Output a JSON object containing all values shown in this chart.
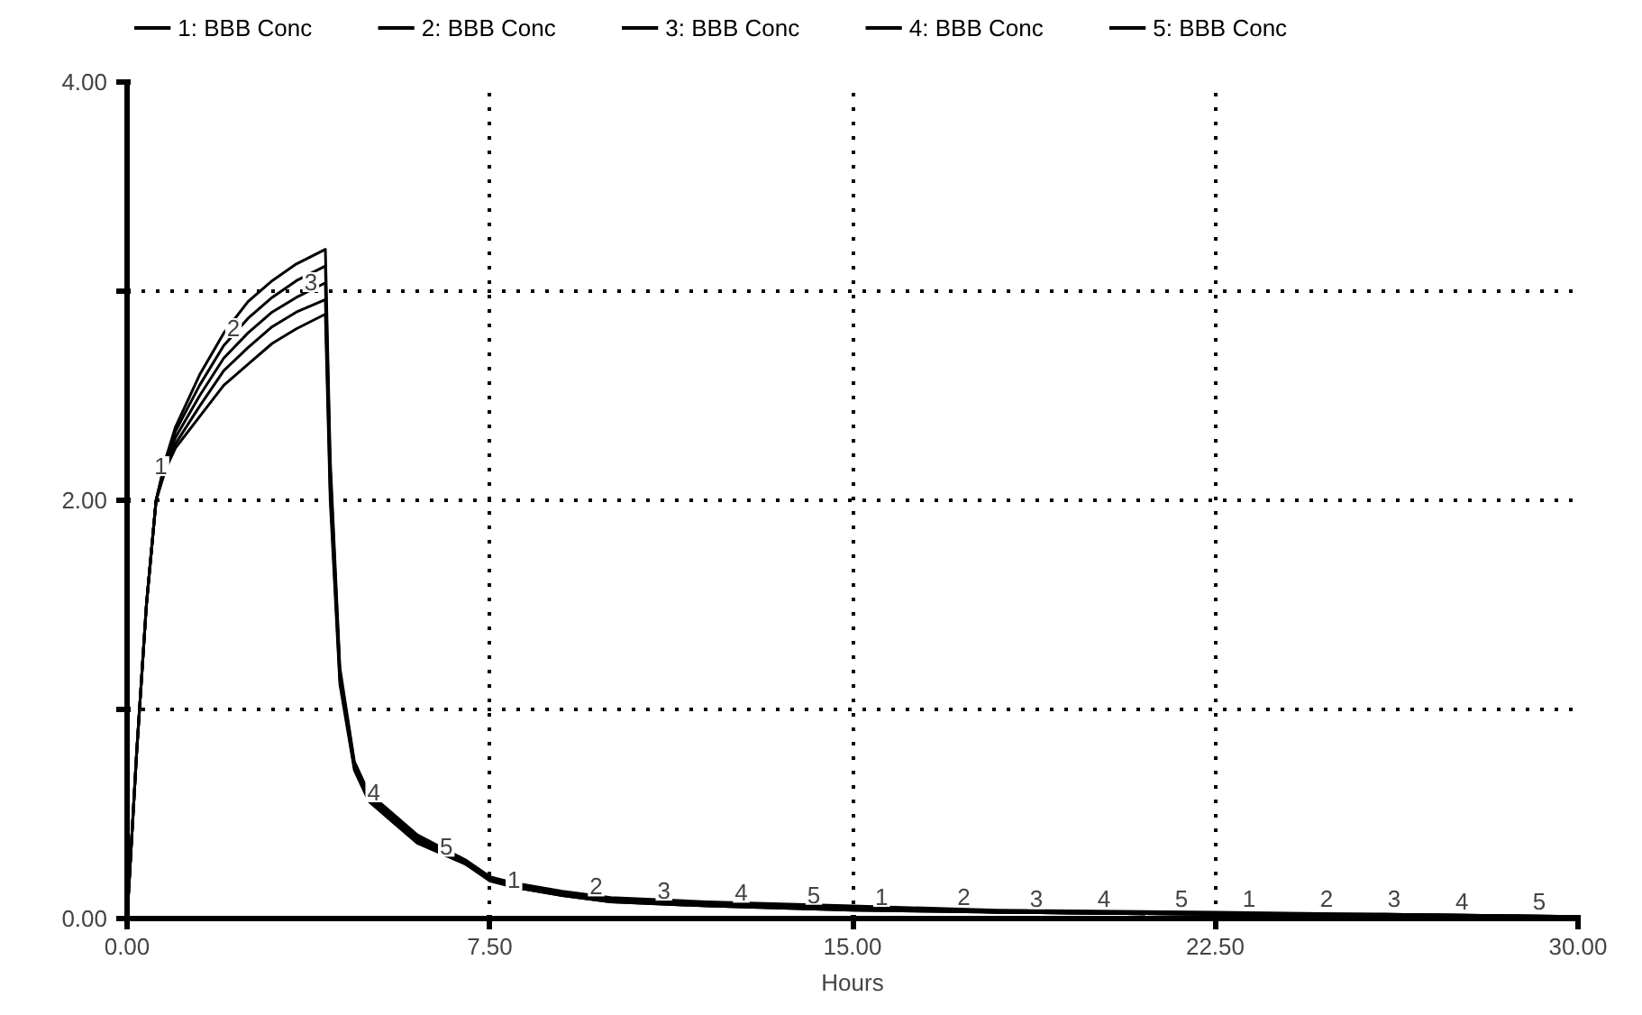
{
  "chart_data": {
    "type": "line",
    "xlabel": "Hours",
    "legend": "top",
    "grid": true,
    "line_style": "solid",
    "marker": "none",
    "x": [
      0,
      0.2,
      0.4,
      0.6,
      0.8,
      1,
      1.5,
      2,
      2.5,
      3,
      3.5,
      4.1,
      4.2,
      4.4,
      4.7,
      5,
      5.5,
      6,
      7,
      7.5,
      8,
      9,
      10,
      12,
      15,
      18,
      22.5,
      26,
      30
    ],
    "series": [
      {
        "name": "1: BBB Conc",
        "color": "#000000",
        "values": [
          0,
          0.8,
          1.5,
          2.0,
          2.2,
          2.35,
          2.6,
          2.8,
          2.95,
          3.05,
          3.13,
          3.2,
          2.2,
          1.2,
          0.75,
          0.6,
          0.5,
          0.4,
          0.28,
          0.2,
          0.17,
          0.13,
          0.1,
          0.08,
          0.06,
          0.04,
          0.03,
          0.02,
          0.01
        ]
      },
      {
        "name": "2: BBB Conc",
        "color": "#000000",
        "values": [
          0,
          0.8,
          1.5,
          2.0,
          2.19,
          2.33,
          2.55,
          2.74,
          2.87,
          2.97,
          3.05,
          3.12,
          2.15,
          1.18,
          0.74,
          0.59,
          0.49,
          0.39,
          0.27,
          0.2,
          0.16,
          0.12,
          0.09,
          0.07,
          0.05,
          0.03,
          0.02,
          0.02,
          0.01
        ]
      },
      {
        "name": "3: BBB Conc",
        "color": "#000000",
        "values": [
          0,
          0.8,
          1.5,
          2.0,
          2.18,
          2.3,
          2.5,
          2.68,
          2.8,
          2.9,
          2.97,
          3.04,
          2.1,
          1.16,
          0.73,
          0.58,
          0.48,
          0.38,
          0.27,
          0.19,
          0.16,
          0.12,
          0.09,
          0.07,
          0.05,
          0.03,
          0.02,
          0.02,
          0.01
        ]
      },
      {
        "name": "4: BBB Conc",
        "color": "#000000",
        "values": [
          0,
          0.8,
          1.5,
          2.0,
          2.16,
          2.27,
          2.45,
          2.62,
          2.73,
          2.83,
          2.9,
          2.96,
          2.05,
          1.14,
          0.72,
          0.57,
          0.47,
          0.37,
          0.26,
          0.19,
          0.15,
          0.11,
          0.08,
          0.06,
          0.04,
          0.03,
          0.02,
          0.01,
          0.01
        ]
      },
      {
        "name": "5: BBB Conc",
        "color": "#000000",
        "values": [
          0,
          0.8,
          1.5,
          2.0,
          2.15,
          2.25,
          2.4,
          2.55,
          2.65,
          2.75,
          2.82,
          2.89,
          2.0,
          1.12,
          0.71,
          0.56,
          0.46,
          0.36,
          0.26,
          0.18,
          0.15,
          0.11,
          0.08,
          0.06,
          0.04,
          0.03,
          0.02,
          0.01,
          0.01
        ]
      }
    ],
    "xlim": [
      0,
      30
    ],
    "ylim": [
      0,
      4
    ],
    "xticks": [
      {
        "value": 0,
        "label": "0.00"
      },
      {
        "value": 7.5,
        "label": "7.50"
      },
      {
        "value": 15,
        "label": "15.00"
      },
      {
        "value": 22.5,
        "label": "22.50"
      },
      {
        "value": 30,
        "label": "30.00"
      }
    ],
    "yticks": [
      {
        "value": 0,
        "label": "0.00"
      },
      {
        "value": 1,
        "label": null
      },
      {
        "value": 2,
        "label": "2.00"
      },
      {
        "value": 3,
        "label": null
      },
      {
        "value": 4,
        "label": "4.00"
      }
    ],
    "annotations": [
      {
        "text": "1",
        "x": 0.7,
        "y": 2.09
      },
      {
        "text": "2",
        "x": 2.2,
        "y": 2.75
      },
      {
        "text": "3",
        "x": 3.8,
        "y": 2.97
      },
      {
        "text": "4",
        "x": 5.1,
        "y": 0.53
      },
      {
        "text": "5",
        "x": 6.6,
        "y": 0.27
      },
      {
        "text": "1",
        "x": 8.0,
        "y": 0.11
      },
      {
        "text": "2",
        "x": 9.7,
        "y": 0.08
      },
      {
        "text": "3",
        "x": 11.1,
        "y": 0.06
      },
      {
        "text": "4",
        "x": 12.7,
        "y": 0.05
      },
      {
        "text": "5",
        "x": 14.2,
        "y": 0.04
      },
      {
        "text": "1",
        "x": 15.6,
        "y": 0.03
      },
      {
        "text": "2",
        "x": 17.3,
        "y": 0.03
      },
      {
        "text": "3",
        "x": 18.8,
        "y": 0.02
      },
      {
        "text": "4",
        "x": 20.2,
        "y": 0.02
      },
      {
        "text": "5",
        "x": 21.8,
        "y": 0.02
      },
      {
        "text": "1",
        "x": 23.2,
        "y": 0.02
      },
      {
        "text": "2",
        "x": 24.8,
        "y": 0.02
      },
      {
        "text": "3",
        "x": 26.2,
        "y": 0.02
      },
      {
        "text": "4",
        "x": 27.6,
        "y": 0.01
      },
      {
        "text": "5",
        "x": 29.2,
        "y": 0.01
      }
    ]
  }
}
